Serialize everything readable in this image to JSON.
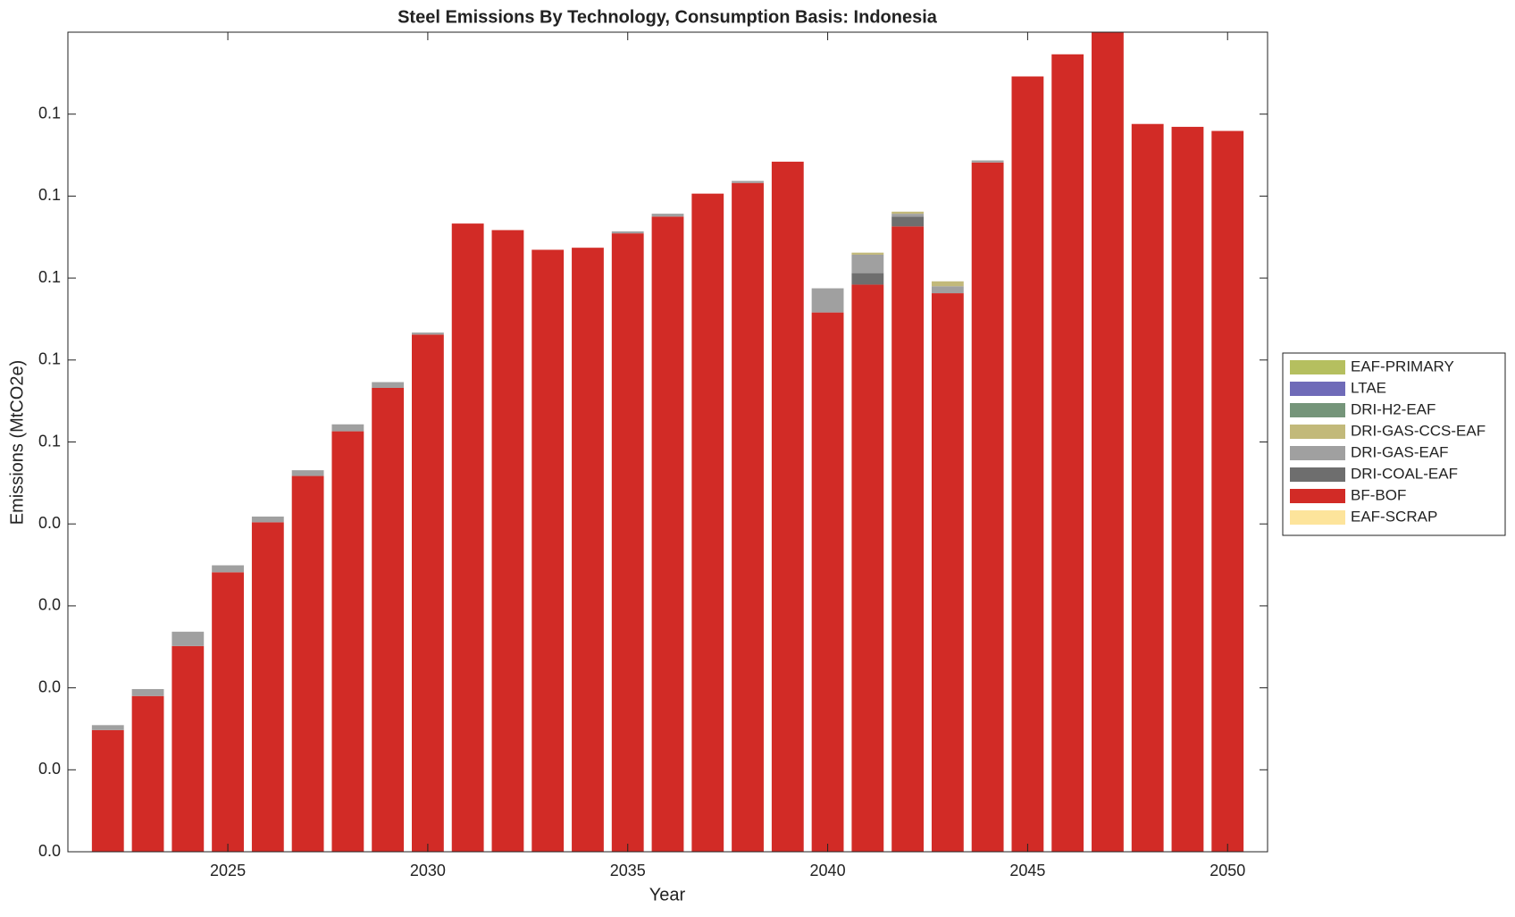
{
  "chart_data": {
    "type": "bar",
    "stacked": true,
    "title": "Steel Emissions By Technology, Consumption Basis: Indonesia",
    "x_label": "Year",
    "y_label": "Emissions (MtCO2e)",
    "x": [
      2022,
      2023,
      2024,
      2025,
      2026,
      2027,
      2028,
      2029,
      2030,
      2031,
      2032,
      2033,
      2034,
      2035,
      2036,
      2037,
      2038,
      2039,
      2040,
      2041,
      2042,
      2043,
      2044,
      2045,
      2046,
      2047,
      2048,
      2049,
      2050
    ],
    "xlim": [
      2021,
      2051
    ],
    "xticks": [
      2025,
      2030,
      2035,
      2040,
      2045,
      2050
    ],
    "ylim": [
      0,
      0.2
    ],
    "yticks": [
      {
        "value": 0,
        "label": "0.0"
      },
      {
        "value": 0.02,
        "label": "0.0"
      },
      {
        "value": 0.04,
        "label": "0.0"
      },
      {
        "value": 0.06,
        "label": "0.0"
      },
      {
        "value": 0.08,
        "label": "0.0"
      },
      {
        "value": 0.1,
        "label": "0.1"
      },
      {
        "value": 0.12,
        "label": "0.1"
      },
      {
        "value": 0.14,
        "label": "0.1"
      },
      {
        "value": 0.16,
        "label": "0.1"
      },
      {
        "value": 0.18,
        "label": "0.1"
      }
    ],
    "legend": "outside-right",
    "series": [
      {
        "name": "EAF-PRIMARY",
        "color": "#b5bf5f",
        "values": [
          0,
          0,
          0,
          0,
          0,
          0,
          0,
          0,
          0,
          0,
          0,
          0,
          0,
          0,
          0,
          0,
          0,
          0,
          0,
          0,
          0,
          0,
          0,
          0,
          0,
          0,
          0,
          0,
          0
        ]
      },
      {
        "name": "LTAE",
        "color": "#6f6bb8",
        "values": [
          0,
          0,
          0,
          0,
          0,
          0,
          0,
          0,
          0,
          0,
          0,
          0,
          0,
          0,
          0,
          0,
          0,
          0,
          0,
          0,
          0,
          0,
          0,
          0,
          0,
          0,
          0,
          0,
          0
        ]
      },
      {
        "name": "DRI-H2-EAF",
        "color": "#75957a",
        "values": [
          0,
          0,
          0,
          0,
          0,
          0,
          0,
          0,
          0,
          0,
          0,
          0,
          0,
          0,
          0,
          0,
          0,
          0,
          0,
          0,
          0,
          0,
          0,
          0,
          0,
          0,
          0,
          0,
          0
        ]
      },
      {
        "name": "DRI-GAS-CCS-EAF",
        "color": "#c2b97a",
        "values": [
          0,
          0,
          0,
          0,
          0,
          0,
          0,
          0,
          0,
          0,
          0,
          0,
          0,
          0,
          0,
          0,
          0,
          0,
          0,
          0.0005,
          0.0005,
          0.0012,
          0,
          0,
          0,
          0,
          0,
          0,
          0
        ]
      },
      {
        "name": "DRI-GAS-EAF",
        "color": "#a0a0a0",
        "values": [
          0.0012,
          0.0017,
          0.0035,
          0.0017,
          0.0014,
          0.0014,
          0.0017,
          0.0014,
          0.0005,
          0,
          0,
          0,
          0,
          0.0005,
          0.0007,
          0,
          0.0005,
          0,
          0.0059,
          0.0045,
          0.0007,
          0.0017,
          0.0005,
          0,
          0,
          0,
          0,
          0,
          0
        ]
      },
      {
        "name": "DRI-COAL-EAF",
        "color": "#6e6e6e",
        "values": [
          0,
          0,
          0,
          0,
          0,
          0,
          0,
          0,
          0,
          0,
          0,
          0,
          0,
          0,
          0,
          0,
          0,
          0,
          0,
          0.0028,
          0.0024,
          0,
          0,
          0,
          0,
          0,
          0,
          0,
          0
        ]
      },
      {
        "name": "BF-BOF",
        "color": "#d22b26",
        "values": [
          0.0297,
          0.038,
          0.0502,
          0.0682,
          0.0804,
          0.0917,
          0.1026,
          0.1132,
          0.1262,
          0.1533,
          0.1517,
          0.1469,
          0.1474,
          0.1509,
          0.155,
          0.1606,
          0.1632,
          0.1684,
          0.1316,
          0.1384,
          0.1526,
          0.1363,
          0.1682,
          0.1892,
          0.1946,
          0.2,
          0.1776,
          0.1769,
          0.1759
        ]
      },
      {
        "name": "EAF-SCRAP",
        "color": "#fde49b",
        "values": [
          0,
          0,
          0,
          0,
          0,
          0,
          0,
          0,
          0,
          0,
          0,
          0,
          0,
          0,
          0,
          0,
          0,
          0,
          0,
          0,
          0,
          0,
          0,
          0,
          0,
          0,
          0,
          0,
          0
        ]
      }
    ]
  }
}
